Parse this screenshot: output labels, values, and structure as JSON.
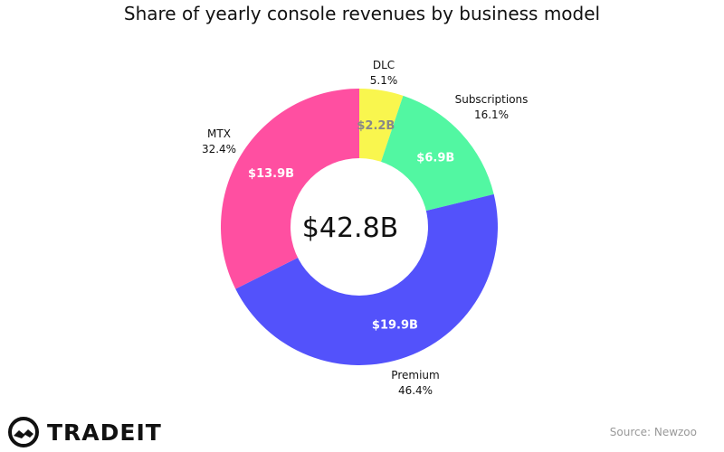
{
  "title": "Share of yearly console revenues by business model",
  "chart_data": {
    "type": "pie",
    "donut": true,
    "center_label": "$42.8B",
    "slices": [
      {
        "name": "DLC",
        "value": 2.2,
        "value_label": "$2.2B",
        "percent_label": "5.1%",
        "color": "#F9F64E"
      },
      {
        "name": "Subscriptions",
        "value": 6.9,
        "value_label": "$6.9B",
        "percent_label": "16.1%",
        "color": "#52F7A2"
      },
      {
        "name": "Premium",
        "value": 19.9,
        "value_label": "$19.9B",
        "percent_label": "46.4%",
        "color": "#5352FB"
      },
      {
        "name": "MTX",
        "value": 13.9,
        "value_label": "$13.9B",
        "percent_label": "32.4%",
        "color": "#FF4FA1"
      }
    ]
  },
  "logo": {
    "text": "TRADEIT"
  },
  "source": "Source: Newzoo"
}
